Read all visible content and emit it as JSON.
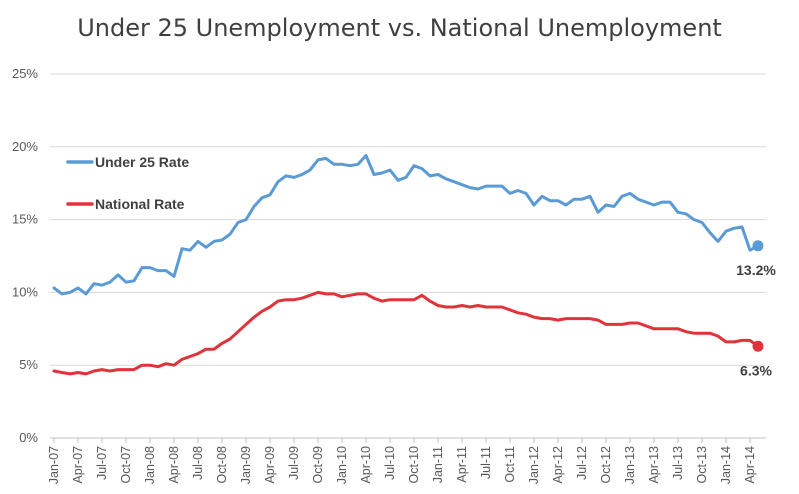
{
  "colors": {
    "under25": "#5b9bd5",
    "national": "#e0333a",
    "grid": "#d9d9d9",
    "axis": "#bfbfbf"
  },
  "chart_data": {
    "type": "line",
    "title": "Under 25 Unemployment vs. National Unemployment",
    "xlabel": "",
    "ylabel": "",
    "ylim": [
      0,
      25
    ],
    "yticks": [
      "0%",
      "5%",
      "10%",
      "15%",
      "20%",
      "25%"
    ],
    "x_tick_labels": [
      "Jan-07",
      "Apr-07",
      "Jul-07",
      "Oct-07",
      "Jan-08",
      "Apr-08",
      "Jul-08",
      "Oct-08",
      "Jan-09",
      "Apr-09",
      "Jul-09",
      "Oct-09",
      "Jan-10",
      "Apr-10",
      "Jul-10",
      "Oct-10",
      "Jan-11",
      "Apr-11",
      "Jul-11",
      "Oct-11",
      "Jan-12",
      "Apr-12",
      "Jul-12",
      "Oct-12",
      "Jan-13",
      "Apr-13",
      "Jul-13",
      "Oct-13",
      "Jan-14",
      "Apr-14"
    ],
    "x_start": "Jan-07",
    "x_end": "May-14",
    "grid": true,
    "legend": "left",
    "series": [
      {
        "name": "Under 25 Rate",
        "color": "#5b9bd5",
        "end_label": "13.2%",
        "values": [
          10.3,
          9.9,
          10.0,
          10.3,
          9.9,
          10.6,
          10.5,
          10.7,
          11.2,
          10.7,
          10.8,
          11.7,
          11.7,
          11.5,
          11.5,
          11.1,
          13.0,
          12.9,
          13.5,
          13.1,
          13.5,
          13.6,
          14.0,
          14.8,
          15.0,
          15.9,
          16.5,
          16.7,
          17.6,
          18.0,
          17.9,
          18.1,
          18.4,
          19.1,
          19.2,
          18.8,
          18.8,
          18.7,
          18.8,
          19.4,
          18.1,
          18.2,
          18.4,
          17.7,
          17.9,
          18.7,
          18.5,
          18.0,
          18.1,
          17.8,
          17.6,
          17.4,
          17.2,
          17.1,
          17.3,
          17.3,
          17.3,
          16.8,
          17.0,
          16.8,
          16.0,
          16.6,
          16.3,
          16.3,
          16.0,
          16.4,
          16.4,
          16.6,
          15.5,
          16.0,
          15.9,
          16.6,
          16.8,
          16.4,
          16.2,
          16.0,
          16.2,
          16.2,
          15.5,
          15.4,
          15.0,
          14.8,
          14.1,
          13.5,
          14.2,
          14.4,
          14.5,
          12.9,
          13.2
        ]
      },
      {
        "name": "National Rate",
        "color": "#e0333a",
        "end_label": "6.3%",
        "values": [
          4.6,
          4.5,
          4.4,
          4.5,
          4.4,
          4.6,
          4.7,
          4.6,
          4.7,
          4.7,
          4.7,
          5.0,
          5.0,
          4.9,
          5.1,
          5.0,
          5.4,
          5.6,
          5.8,
          6.1,
          6.1,
          6.5,
          6.8,
          7.3,
          7.8,
          8.3,
          8.7,
          9.0,
          9.4,
          9.5,
          9.5,
          9.6,
          9.8,
          10.0,
          9.9,
          9.9,
          9.7,
          9.8,
          9.9,
          9.9,
          9.6,
          9.4,
          9.5,
          9.5,
          9.5,
          9.5,
          9.8,
          9.4,
          9.1,
          9.0,
          9.0,
          9.1,
          9.0,
          9.1,
          9.0,
          9.0,
          9.0,
          8.8,
          8.6,
          8.5,
          8.3,
          8.2,
          8.2,
          8.1,
          8.2,
          8.2,
          8.2,
          8.2,
          8.1,
          7.8,
          7.8,
          7.8,
          7.9,
          7.9,
          7.7,
          7.5,
          7.5,
          7.5,
          7.5,
          7.3,
          7.2,
          7.2,
          7.2,
          7.0,
          6.6,
          6.6,
          6.7,
          6.7,
          6.3
        ]
      }
    ]
  }
}
